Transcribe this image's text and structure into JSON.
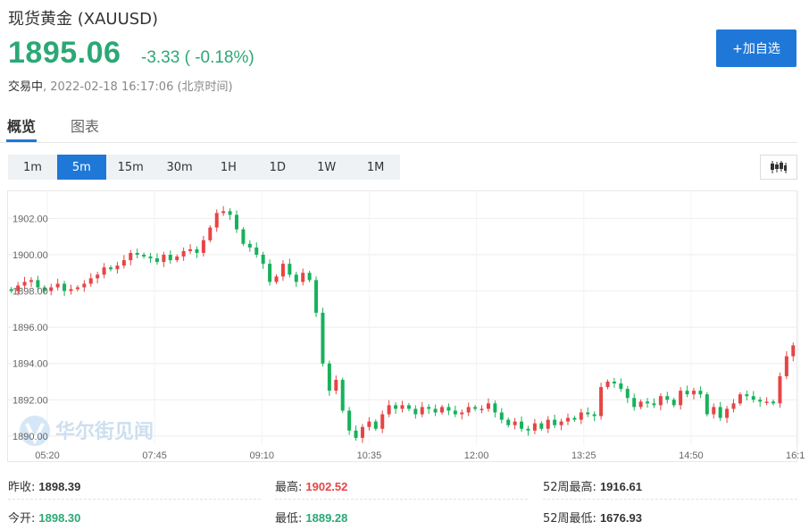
{
  "header": {
    "title": "现货黄金 (XAUUSD)",
    "price": "1895.06",
    "change": "-3.33 ( -0.18%)",
    "status_label": "交易中",
    "status_time": ", 2022-02-18 16:17:06 (北京时间)",
    "add_button": "+加自选"
  },
  "tabs": [
    {
      "label": "概览",
      "active": true
    },
    {
      "label": "图表",
      "active": false
    }
  ],
  "periods": [
    {
      "label": "1m",
      "active": false
    },
    {
      "label": "5m",
      "active": true
    },
    {
      "label": "15m",
      "active": false
    },
    {
      "label": "30m",
      "active": false
    },
    {
      "label": "1H",
      "active": false
    },
    {
      "label": "1D",
      "active": false
    },
    {
      "label": "1W",
      "active": false
    },
    {
      "label": "1M",
      "active": false
    }
  ],
  "chart_type_icon": "candlestick-icon",
  "watermark": {
    "text": "华尔街见闻"
  },
  "colors": {
    "up": "#e64545",
    "down": "#18b15c",
    "accent": "#1f78d8"
  },
  "chart_data": {
    "type": "candlestick",
    "y_ticks": [
      "1902.00",
      "1900.00",
      "1898.00",
      "1896.00",
      "1894.00",
      "1892.00",
      "1890.00"
    ],
    "x_ticks": [
      "05:20",
      "07:45",
      "09:10",
      "10:35",
      "12:00",
      "13:25",
      "14:50",
      "16:1"
    ],
    "ylim": [
      1889.5,
      1903.5
    ],
    "grid": true,
    "close_series": [
      1898.0,
      1898.3,
      1898.5,
      1898.6,
      1898.2,
      1898.0,
      1898.2,
      1898.4,
      1898.0,
      1898.1,
      1898.2,
      1898.4,
      1898.7,
      1898.9,
      1899.3,
      1899.2,
      1899.4,
      1899.7,
      1900.1,
      1900.0,
      1899.9,
      1899.8,
      1899.6,
      1900.0,
      1899.7,
      1899.9,
      1900.2,
      1900.3,
      1900.1,
      1900.8,
      1901.5,
      1902.3,
      1902.4,
      1902.2,
      1901.4,
      1900.6,
      1900.4,
      1900.0,
      1899.5,
      1898.5,
      1898.8,
      1899.5,
      1898.9,
      1898.5,
      1899.0,
      1898.6,
      1896.8,
      1894.0,
      1892.5,
      1893.1,
      1891.4,
      1890.3,
      1889.9,
      1890.5,
      1890.8,
      1890.4,
      1891.2,
      1891.7,
      1891.5,
      1891.7,
      1891.5,
      1891.2,
      1891.6,
      1891.5,
      1891.3,
      1891.6,
      1891.4,
      1891.2,
      1891.3,
      1891.6,
      1891.5,
      1891.5,
      1891.8,
      1891.3,
      1890.9,
      1890.6,
      1890.8,
      1890.4,
      1890.3,
      1890.7,
      1890.4,
      1890.9,
      1890.6,
      1890.8,
      1891.0,
      1890.9,
      1891.3,
      1891.2,
      1891.1,
      1892.7,
      1893.0,
      1892.9,
      1892.6,
      1892.1,
      1891.6,
      1891.9,
      1891.8,
      1891.7,
      1892.2,
      1892.0,
      1891.7,
      1892.5,
      1892.3,
      1892.5,
      1892.3,
      1891.2,
      1891.6,
      1891.0,
      1891.5,
      1891.8,
      1892.3,
      1892.2,
      1892.0,
      1891.9,
      1891.9,
      1891.8,
      1893.3,
      1894.4,
      1895.0
    ],
    "up_color": "#e64545",
    "down_color": "#18b15c"
  },
  "stats": {
    "prev_close": {
      "label": "昨收:",
      "value": "1898.39"
    },
    "high": {
      "label": "最高:",
      "value": "1902.52"
    },
    "w52_high": {
      "label": "52周最高:",
      "value": "1916.61"
    },
    "open": {
      "label": "今开:",
      "value": "1898.30"
    },
    "low": {
      "label": "最低:",
      "value": "1889.28"
    },
    "w52_low": {
      "label": "52周最低:",
      "value": "1676.93"
    }
  }
}
